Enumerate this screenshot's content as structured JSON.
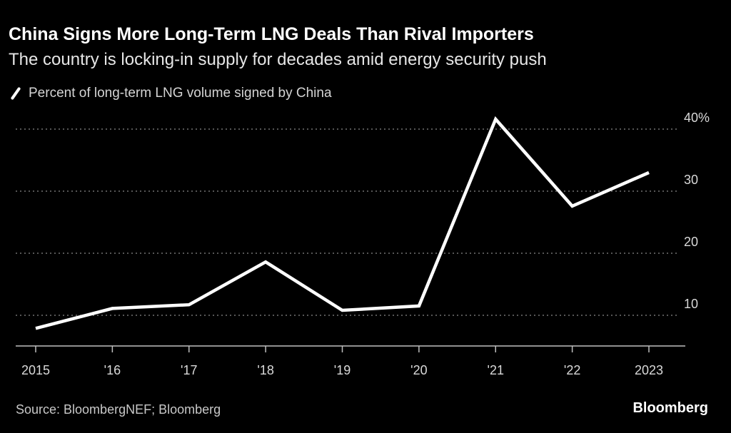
{
  "header": {
    "title": "China Signs More Long-Term LNG Deals Than Rival Importers",
    "subtitle": "The country is locking-in supply for decades amid energy security push"
  },
  "legend": {
    "icon": "line-swatch-icon",
    "label": "Percent of long-term LNG volume signed by China"
  },
  "footer": {
    "source": "Source: BloombergNEF; Bloomberg",
    "brand": "Bloomberg"
  },
  "colors": {
    "background": "#000000",
    "line": "#ffffff",
    "grid": "#8a8a8a",
    "axis": "#bfbfbf"
  },
  "chart_data": {
    "type": "line",
    "title": "China Signs More Long-Term LNG Deals Than Rival Importers",
    "subtitle": "The country is locking-in supply for decades amid energy security push",
    "xlabel": "",
    "ylabel": "",
    "categories": [
      "2015",
      "'16",
      "'17",
      "'18",
      "'19",
      "'20",
      "'21",
      "'22",
      "2023"
    ],
    "series": [
      {
        "name": "Percent of long-term LNG volume signed by China",
        "values": [
          7.9,
          11.1,
          11.7,
          18.6,
          10.8,
          11.5,
          41.6,
          27.6,
          33.0
        ]
      }
    ],
    "ylim": [
      5,
      43
    ],
    "yticks": [
      10,
      20,
      30,
      40
    ],
    "ytick_labels": [
      "10",
      "20",
      "30",
      "40%"
    ],
    "y_axis_side": "right",
    "grid": true,
    "grid_style": "dotted",
    "legend_position": "top-left"
  }
}
